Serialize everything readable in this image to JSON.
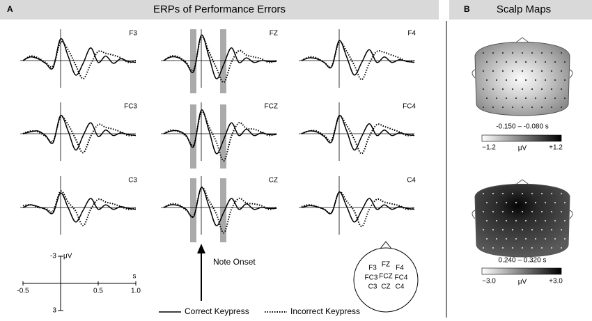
{
  "panel_a": {
    "letter": "A",
    "title": "ERPs of Performance Errors"
  },
  "panel_b": {
    "letter": "B",
    "title": "Scalp Maps"
  },
  "chart_data": {
    "type": "line",
    "x": [
      -0.5,
      -0.4,
      -0.3,
      -0.2,
      -0.1,
      0,
      0.1,
      0.2,
      0.3,
      0.4,
      0.5,
      0.6,
      0.7,
      0.8,
      0.9,
      1.0
    ],
    "xlim": [
      -0.5,
      1.0
    ],
    "ylim": [
      -3,
      3
    ],
    "xticks": [
      -0.5,
      0.5,
      {
        "value": 1.0,
        "label": "1.0"
      }
    ],
    "yticks": [
      -3,
      3
    ],
    "x_unit": "s",
    "y_unit": "μV",
    "series": [
      {
        "name": "Correct Keypress",
        "style": "solid"
      },
      {
        "name": "Incorrect Keypress",
        "style": "dotted"
      }
    ],
    "panels": [
      {
        "label": "F3",
        "correct": [
          0,
          -0.4,
          -0.2,
          0.3,
          0.8,
          -2.4,
          -0.5,
          1.6,
          0.3,
          -1.4,
          0.2,
          -0.5,
          0.3,
          -0.2,
          0.1,
          0.2
        ],
        "incorrect": [
          0,
          -0.5,
          -0.3,
          0.2,
          0.6,
          -2.0,
          -1.2,
          0.5,
          2.0,
          0.4,
          -1.0,
          -0.8,
          -0.6,
          -0.3,
          0.2,
          0
        ]
      },
      {
        "label": "FZ",
        "correct": [
          0,
          -0.4,
          -0.3,
          0.3,
          1.2,
          -2.8,
          -0.5,
          2.0,
          0.4,
          -1.4,
          0.2,
          -0.3,
          0.2,
          0,
          0.1,
          0.1
        ],
        "incorrect": [
          0,
          -0.5,
          -0.4,
          0.2,
          1.0,
          -2.6,
          -1.0,
          0.8,
          2.4,
          0.2,
          -1.1,
          -0.6,
          -0.4,
          -0.2,
          0.2,
          0
        ]
      },
      {
        "label": "F4",
        "correct": [
          0,
          -0.3,
          -0.2,
          0.2,
          0.7,
          -2.2,
          -0.4,
          1.6,
          0.2,
          -1.2,
          0.2,
          -0.4,
          0.2,
          -0.1,
          0.1,
          0.2
        ],
        "incorrect": [
          0,
          -0.4,
          -0.3,
          0.2,
          0.6,
          -2.0,
          -1.0,
          0.5,
          2.1,
          0.3,
          -1.0,
          -0.9,
          -0.6,
          -0.3,
          0.1,
          0
        ]
      },
      {
        "label": "FC3",
        "correct": [
          0,
          -0.2,
          -0.3,
          0.2,
          1.0,
          -2.0,
          -0.3,
          1.8,
          0.2,
          -1.2,
          0.3,
          -0.4,
          0.2,
          -0.1,
          0.1,
          0.2
        ],
        "incorrect": [
          0,
          -0.3,
          -0.2,
          0.3,
          0.8,
          -1.8,
          -1.0,
          0.6,
          2.1,
          0.3,
          -1.0,
          -0.7,
          -0.5,
          -0.2,
          0.2,
          0.1
        ]
      },
      {
        "label": "FCZ",
        "correct": [
          0,
          -0.3,
          -0.3,
          0.2,
          1.4,
          -2.6,
          -0.4,
          2.2,
          0.6,
          -1.2,
          0.2,
          -0.5,
          0.2,
          -0.1,
          0.1,
          0.1
        ],
        "incorrect": [
          0,
          -0.4,
          -0.2,
          0.3,
          1.2,
          -2.4,
          -0.8,
          0.9,
          3.0,
          0.3,
          -1.2,
          -0.6,
          -0.5,
          -0.2,
          0.2,
          0
        ]
      },
      {
        "label": "FC4",
        "correct": [
          0,
          -0.3,
          -0.2,
          0.3,
          0.9,
          -2.0,
          -0.3,
          1.8,
          0.3,
          -1.1,
          0.2,
          -0.4,
          0.2,
          -0.1,
          0.1,
          0.2
        ],
        "incorrect": [
          0,
          -0.3,
          -0.3,
          0.2,
          0.7,
          -1.9,
          -0.9,
          0.6,
          2.2,
          0.3,
          -1.0,
          -0.8,
          -0.5,
          -0.2,
          0.2,
          0.1
        ]
      },
      {
        "label": "C3",
        "correct": [
          0,
          -0.3,
          -0.1,
          0.2,
          0.6,
          -1.6,
          0,
          1.6,
          0.3,
          -1.0,
          0.2,
          -0.3,
          0.2,
          -0.1,
          0.1,
          0.2
        ],
        "incorrect": [
          -0.2,
          -0.3,
          0,
          0.1,
          0.4,
          -1.8,
          -0.6,
          0.4,
          2.0,
          0.2,
          -0.9,
          -0.6,
          -0.4,
          -0.1,
          0.2,
          0.1
        ]
      },
      {
        "label": "CZ",
        "correct": [
          0,
          -0.3,
          -0.2,
          0.2,
          1.0,
          -2.2,
          -0.2,
          2.0,
          0.5,
          -1.0,
          0.2,
          -0.4,
          0.2,
          0,
          0.1,
          0.1
        ],
        "incorrect": [
          0,
          -0.4,
          -0.3,
          0.3,
          0.9,
          -2.2,
          -0.8,
          0.7,
          2.8,
          0.2,
          -1.0,
          -0.5,
          -0.4,
          -0.2,
          0.2,
          0
        ]
      },
      {
        "label": "C4",
        "correct": [
          0,
          -0.2,
          -0.1,
          0.2,
          0.6,
          -1.7,
          -0.1,
          1.6,
          0.3,
          -1.0,
          0.2,
          -0.3,
          0.2,
          -0.1,
          0.1,
          0.2
        ],
        "incorrect": [
          -0.1,
          -0.3,
          -0.1,
          0.2,
          0.5,
          -1.7,
          -0.7,
          0.4,
          2.1,
          0.2,
          -0.9,
          -0.6,
          -0.4,
          -0.2,
          0.2,
          0.1
        ]
      }
    ]
  },
  "note_onset": "Note Onset",
  "head_labels": [
    "F3",
    "FZ",
    "F4",
    "FC3",
    "FCZ",
    "FC4",
    "C3",
    "CZ",
    "C4"
  ],
  "scalp_maps": [
    {
      "window": "-0.150 – -0.080 s",
      "min": "−1.2",
      "unit": "μV",
      "max": "+1.2"
    },
    {
      "window": "0.240 – 0.320 s",
      "min": "−3.0",
      "unit": "μV",
      "max": "+3.0"
    }
  ]
}
